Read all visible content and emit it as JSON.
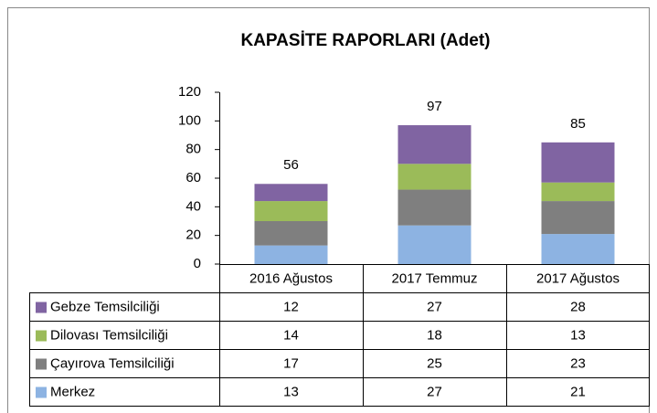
{
  "chart_data": {
    "type": "stacked_bar",
    "title": "KAPASİTE RAPORLARI (Adet)",
    "categories": [
      "2016 Ağustos",
      "2017 Temmuz",
      "2017 Ağustos"
    ],
    "series": [
      {
        "name": "Gebze Temsilciliği",
        "color": "#8064a2",
        "values": [
          12,
          27,
          28
        ]
      },
      {
        "name": "Dilovası Temsilciliği",
        "color": "#9bbb59",
        "values": [
          14,
          18,
          13
        ]
      },
      {
        "name": "Çayırova Temsilciliği",
        "color": "#7f7f7f",
        "values": [
          17,
          25,
          23
        ]
      },
      {
        "name": "Merkez",
        "color": "#8db3e2",
        "values": [
          13,
          27,
          21
        ]
      }
    ],
    "total_labels": [
      56,
      97,
      85
    ],
    "ylim": [
      0,
      120
    ],
    "yticks": [
      0,
      20,
      40,
      60,
      80,
      100,
      120
    ],
    "grid": false,
    "legend": "data-table"
  }
}
